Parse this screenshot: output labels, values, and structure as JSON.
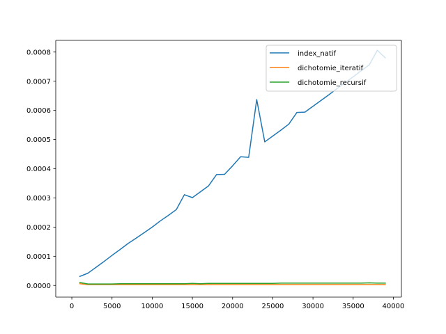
{
  "chart_data": {
    "type": "line",
    "title": "",
    "xlabel": "",
    "ylabel": "",
    "xlim": [
      -2000,
      41000
    ],
    "ylim": [
      -4e-05,
      0.00084
    ],
    "x_ticks": [
      0,
      5000,
      10000,
      15000,
      20000,
      25000,
      30000,
      35000,
      40000
    ],
    "x_tick_labels": [
      "0",
      "5000",
      "10000",
      "15000",
      "20000",
      "25000",
      "30000",
      "35000",
      "40000"
    ],
    "y_ticks": [
      0,
      0.0001,
      0.0002,
      0.0003,
      0.0004,
      0.0005,
      0.0006,
      0.0007,
      0.0008
    ],
    "y_tick_labels": [
      "0.0000",
      "0.0001",
      "0.0002",
      "0.0003",
      "0.0004",
      "0.0005",
      "0.0006",
      "0.0007",
      "0.0008"
    ],
    "grid": false,
    "legend_position": "top-right",
    "x": [
      1000,
      2000,
      3000,
      4000,
      5000,
      6000,
      7000,
      8000,
      9000,
      10000,
      11000,
      12000,
      13000,
      14000,
      15000,
      16000,
      17000,
      18000,
      19000,
      20000,
      21000,
      22000,
      23000,
      24000,
      25000,
      26000,
      27000,
      28000,
      29000,
      30000,
      31000,
      32000,
      33000,
      34000,
      35000,
      36000,
      37000,
      38000,
      39000
    ],
    "series": [
      {
        "name": "index_natif",
        "color": "#1f77b4",
        "values": [
          3.1e-05,
          4.2e-05,
          6.2e-05,
          8.2e-05,
          0.000103,
          0.000123,
          0.000144,
          0.000162,
          0.000181,
          0.0002,
          0.000221,
          0.00024,
          0.00026,
          0.000311,
          0.000301,
          0.000321,
          0.000341,
          0.00038,
          0.000381,
          0.00041,
          0.000441,
          0.000439,
          0.000637,
          0.000492,
          0.000512,
          0.000532,
          0.000553,
          0.000593,
          0.000594,
          0.000614,
          0.000634,
          0.000654,
          0.000675,
          0.000695,
          0.000715,
          0.000736,
          0.000756,
          0.000806,
          0.00078
        ]
      },
      {
        "name": "dichotomie_iteratif",
        "color": "#ff7f0e",
        "values": [
          6e-06,
          3e-06,
          3e-06,
          3e-06,
          3e-06,
          3e-06,
          3e-06,
          3e-06,
          3e-06,
          3e-06,
          3e-06,
          3e-06,
          3e-06,
          3e-06,
          3e-06,
          3e-06,
          3e-06,
          3e-06,
          3e-06,
          3e-06,
          3e-06,
          3e-06,
          3e-06,
          3e-06,
          3e-06,
          3e-06,
          3e-06,
          3e-06,
          3e-06,
          3e-06,
          3e-06,
          3e-06,
          3e-06,
          3e-06,
          3e-06,
          3e-06,
          3e-06,
          3e-06,
          3e-06
        ]
      },
      {
        "name": "dichotomie_recursif",
        "color": "#2ca02c",
        "values": [
          1e-05,
          5e-06,
          5e-06,
          5e-06,
          5e-06,
          6e-06,
          6e-06,
          6e-06,
          6e-06,
          6e-06,
          6e-06,
          6e-06,
          6e-06,
          6e-06,
          7e-06,
          6e-06,
          7e-06,
          7e-06,
          7e-06,
          7e-06,
          7e-06,
          7e-06,
          7e-06,
          7e-06,
          7e-06,
          8e-06,
          8e-06,
          8e-06,
          8e-06,
          8e-06,
          8e-06,
          8e-06,
          8e-06,
          8e-06,
          8e-06,
          8e-06,
          9e-06,
          8e-06,
          8e-06
        ]
      }
    ]
  }
}
